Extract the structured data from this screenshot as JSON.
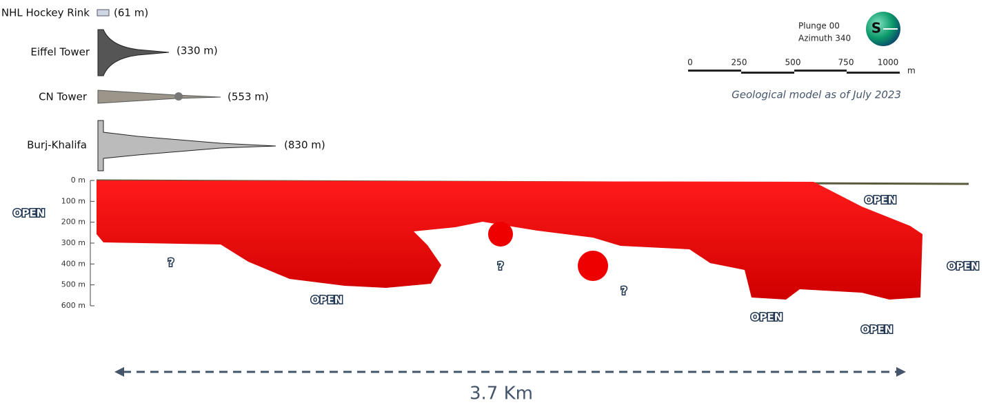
{
  "landmarks": [
    {
      "name": "NHL Hockey Rink",
      "height": "(61 m)"
    },
    {
      "name": "Eiffel Tower",
      "height": "(330 m)"
    },
    {
      "name": "CN Tower",
      "height": "(553 m)"
    },
    {
      "name": "Burj-Khalifa",
      "height": "(830 m)"
    }
  ],
  "orientation": {
    "plunge": "Plunge 00",
    "azimuth": "Azimuth 340",
    "compass": "S"
  },
  "scale_bar": {
    "labels": [
      "0",
      "250",
      "500",
      "750",
      "1000"
    ],
    "unit": "m"
  },
  "caption": "Geological model as of July 2023",
  "depth_axis": [
    "0 m",
    "100 m",
    "200 m",
    "300 m",
    "400 m",
    "500 m",
    "600 m"
  ],
  "annotations": {
    "open": [
      "OPEN",
      "OPEN",
      "OPEN",
      "OPEN",
      "OPEN",
      "OPEN"
    ],
    "unknown": [
      "?",
      "?",
      "?"
    ]
  },
  "extent": "3.7 Km"
}
